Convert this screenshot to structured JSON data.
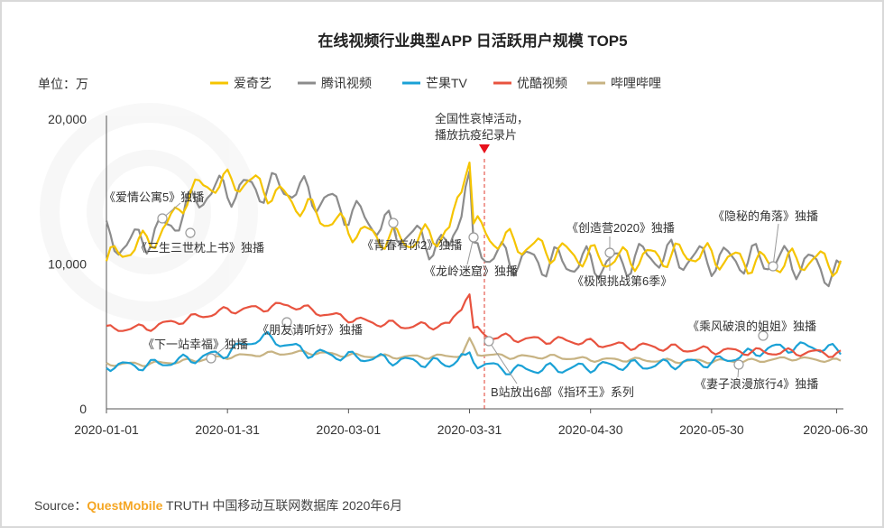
{
  "chart_data": {
    "type": "line",
    "title": "在线视频行业典型APP 日活跃用户规模 TOP5",
    "unit_label": "单位：万",
    "ylim": [
      0,
      20000
    ],
    "yticks": [
      {
        "value": 0,
        "label": "0"
      },
      {
        "value": 10000,
        "label": "10,000"
      },
      {
        "value": 20000,
        "label": "20,000"
      }
    ],
    "xticks": [
      "2020-01-01",
      "2020-01-31",
      "2020-03-01",
      "2020-03-31",
      "2020-04-30",
      "2020-05-30",
      "2020-06-30"
    ],
    "grid": false,
    "legend_position": "top",
    "series": [
      {
        "name": "爱奇艺",
        "color": "#f5c400",
        "anchors": [
          [
            0,
            10200
          ],
          [
            5,
            11000
          ],
          [
            10,
            11500
          ],
          [
            15,
            12500
          ],
          [
            20,
            14800
          ],
          [
            25,
            15500
          ],
          [
            35,
            15700
          ],
          [
            45,
            14500
          ],
          [
            55,
            13000
          ],
          [
            65,
            12000
          ],
          [
            75,
            11600
          ],
          [
            85,
            12200
          ],
          [
            90,
            17000
          ],
          [
            91,
            12800
          ],
          [
            95,
            11800
          ],
          [
            105,
            11200
          ],
          [
            115,
            10700
          ],
          [
            125,
            10300
          ],
          [
            135,
            10500
          ],
          [
            145,
            10700
          ],
          [
            155,
            10300
          ],
          [
            165,
            10000
          ],
          [
            175,
            10300
          ],
          [
            182,
            10000
          ]
        ],
        "amplitude": 700,
        "phase": 0
      },
      {
        "name": "腾讯视频",
        "color": "#8c8c8c",
        "anchors": [
          [
            0,
            11800
          ],
          [
            5,
            11300
          ],
          [
            10,
            11900
          ],
          [
            15,
            12500
          ],
          [
            20,
            13800
          ],
          [
            25,
            15000
          ],
          [
            35,
            15200
          ],
          [
            45,
            15300
          ],
          [
            55,
            14300
          ],
          [
            65,
            13000
          ],
          [
            75,
            12000
          ],
          [
            85,
            11000
          ],
          [
            90,
            16400
          ],
          [
            91,
            11500
          ],
          [
            95,
            10600
          ],
          [
            105,
            10200
          ],
          [
            115,
            10100
          ],
          [
            125,
            10000
          ],
          [
            135,
            10600
          ],
          [
            145,
            10400
          ],
          [
            155,
            10300
          ],
          [
            165,
            10300
          ],
          [
            175,
            10000
          ],
          [
            182,
            9100
          ]
        ],
        "amplitude": 900,
        "phase": 2
      },
      {
        "name": "芒果TV",
        "color": "#1aa1d6",
        "anchors": [
          [
            0,
            3000
          ],
          [
            10,
            3000
          ],
          [
            20,
            3400
          ],
          [
            30,
            3900
          ],
          [
            37,
            4800
          ],
          [
            40,
            4900
          ],
          [
            43,
            4600
          ],
          [
            50,
            3900
          ],
          [
            60,
            3600
          ],
          [
            75,
            3300
          ],
          [
            85,
            3100
          ],
          [
            90,
            3900
          ],
          [
            91,
            3200
          ],
          [
            100,
            2700
          ],
          [
            115,
            2800
          ],
          [
            125,
            3000
          ],
          [
            135,
            3000
          ],
          [
            145,
            3200
          ],
          [
            150,
            3200
          ],
          [
            158,
            3700
          ],
          [
            165,
            4200
          ],
          [
            175,
            4300
          ],
          [
            182,
            4000
          ]
        ],
        "amplitude": 300,
        "phase": 4
      },
      {
        "name": "优酷视频",
        "color": "#e8533f",
        "anchors": [
          [
            0,
            5500
          ],
          [
            10,
            5600
          ],
          [
            20,
            6200
          ],
          [
            30,
            6800
          ],
          [
            40,
            7000
          ],
          [
            45,
            7200
          ],
          [
            55,
            6500
          ],
          [
            65,
            6000
          ],
          [
            75,
            5700
          ],
          [
            85,
            5800
          ],
          [
            90,
            7900
          ],
          [
            91,
            5600
          ],
          [
            95,
            5000
          ],
          [
            105,
            4800
          ],
          [
            115,
            4700
          ],
          [
            125,
            4400
          ],
          [
            135,
            4300
          ],
          [
            145,
            4100
          ],
          [
            155,
            4000
          ],
          [
            165,
            3900
          ],
          [
            175,
            3900
          ],
          [
            182,
            3800
          ]
        ],
        "amplitude": 220,
        "phase": 1
      },
      {
        "name": "哔哩哔哩",
        "color": "#c7b383",
        "anchors": [
          [
            0,
            3100
          ],
          [
            10,
            3100
          ],
          [
            20,
            3300
          ],
          [
            30,
            3600
          ],
          [
            40,
            3800
          ],
          [
            50,
            3900
          ],
          [
            60,
            3700
          ],
          [
            70,
            3600
          ],
          [
            80,
            3600
          ],
          [
            88,
            3700
          ],
          [
            90,
            4900
          ],
          [
            92,
            3800
          ],
          [
            100,
            3600
          ],
          [
            110,
            3600
          ],
          [
            120,
            3400
          ],
          [
            130,
            3400
          ],
          [
            140,
            3300
          ],
          [
            150,
            3300
          ],
          [
            160,
            3300
          ],
          [
            170,
            3500
          ],
          [
            182,
            3300
          ]
        ],
        "amplitude": 120,
        "phase": 3
      }
    ],
    "annotations": [
      {
        "text": "全国性哀悼活动，",
        "day": 90
      },
      {
        "text": "播放抗疫纪录片",
        "day": 90
      },
      {
        "text": "《爱情公寓5》独播",
        "day": 14
      },
      {
        "text": "《三生三世枕上书》独播",
        "day": 22
      },
      {
        "text": "《青春有你2》独播",
        "day": 77
      },
      {
        "text": "《龙岭迷窟》独播",
        "day": 85
      },
      {
        "text": "《创造营2020》独播",
        "day": 123
      },
      {
        "text": "《极限挑战第6季》",
        "day": 123
      },
      {
        "text": "《隐秘的角落》独播",
        "day": 168
      },
      {
        "text": "《朋友请听好》独播",
        "day": 38
      },
      {
        "text": "《下一站幸福》独播",
        "day": 25
      },
      {
        "text": "《乘风破浪的姐姐》独播",
        "day": 162
      },
      {
        "text": "B站放出6部《指环王》系列",
        "day": 90
      },
      {
        "text": "《妻子浪漫旅行4》独播",
        "day": 162
      }
    ]
  },
  "source": {
    "prefix": "Source：",
    "brand": "QuestMobile",
    "rest": " TRUTH 中国移动互联网数据库 2020年6月"
  }
}
